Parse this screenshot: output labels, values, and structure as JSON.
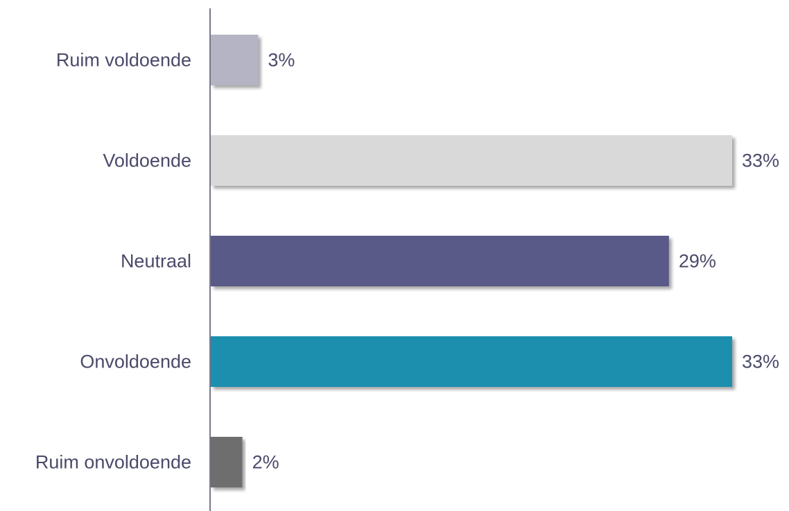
{
  "chart_data": {
    "type": "bar",
    "orientation": "horizontal",
    "categories": [
      "Ruim voldoende",
      "Voldoende",
      "Neutraal",
      "Onvoldoende",
      "Ruim onvoldoende"
    ],
    "values": [
      3,
      33,
      29,
      33,
      2
    ],
    "value_labels": [
      "3%",
      "33%",
      "29%",
      "33%",
      "2%"
    ],
    "colors": [
      "#b4b4c4",
      "#d9d9d9",
      "#5a5a88",
      "#1f8fae",
      "#6e6e6e"
    ],
    "title": "",
    "xlabel": "",
    "ylabel": "",
    "xlim": [
      0,
      33
    ],
    "grid": false,
    "legend": "none"
  }
}
